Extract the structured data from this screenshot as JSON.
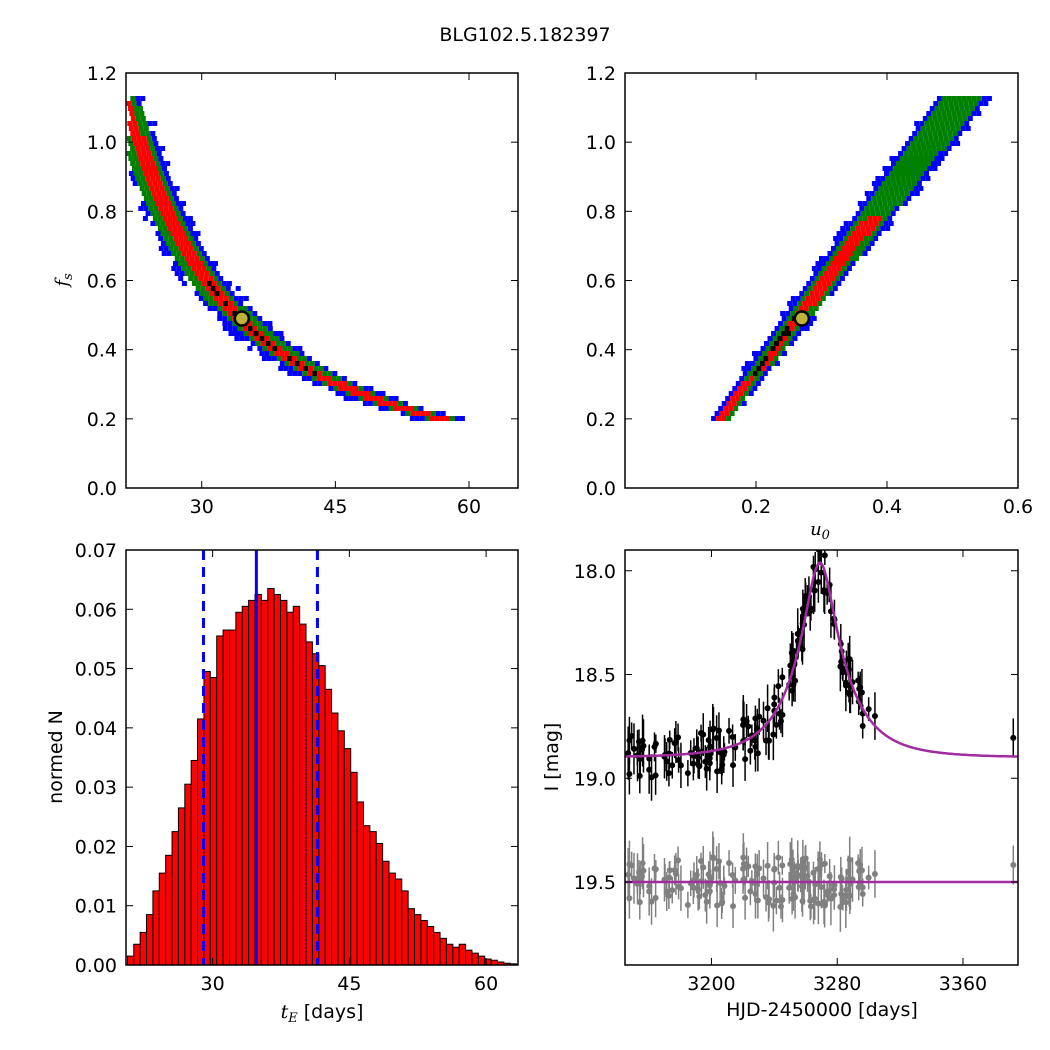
{
  "figure": {
    "title": "BLG102.5.182397"
  },
  "chart_data": [
    {
      "type": "heatmap",
      "xlabel": "",
      "ylabel": "f_s",
      "xlim": [
        21.5,
        65.5
      ],
      "ylim": [
        0.0,
        1.2
      ],
      "xticks": [
        30,
        45,
        60
      ],
      "yticks": [
        0.0,
        0.2,
        0.4,
        0.6,
        0.8,
        1.0,
        1.2
      ],
      "colors": {
        "outer": "#0000ff",
        "mid": "#008000",
        "inner": "#ff0000",
        "core": "#000000",
        "best_fill": "#bdb23a",
        "best_edge": "#000000"
      },
      "best_fit": {
        "x": 34.5,
        "y": 0.49
      }
    },
    {
      "type": "heatmap",
      "xlabel": "u_0",
      "ylabel": "",
      "xlim": [
        0.0,
        0.6
      ],
      "ylim": [
        0.0,
        1.2
      ],
      "xticks": [
        0.2,
        0.4,
        0.6
      ],
      "yticks": [
        0.0,
        0.2,
        0.4,
        0.6,
        0.8,
        1.0,
        1.2
      ],
      "colors": {
        "outer": "#0000ff",
        "mid": "#008000",
        "inner": "#ff0000",
        "core": "#000000",
        "best_fill": "#bdb23a",
        "best_edge": "#000000"
      },
      "best_fit": {
        "x": 0.27,
        "y": 0.49
      }
    },
    {
      "type": "bar",
      "xlabel": "t_E [days]",
      "ylabel": "normed N",
      "xlim": [
        20.5,
        63.5
      ],
      "ylim": [
        0.0,
        0.07
      ],
      "xticks": [
        30,
        45,
        60
      ],
      "yticks": [
        0.0,
        0.01,
        0.02,
        0.03,
        0.04,
        0.05,
        0.06,
        0.07
      ],
      "bar_color": "#ff0000",
      "x": [
        21.0,
        21.7,
        22.4,
        23.1,
        23.8,
        24.5,
        25.2,
        25.9,
        26.6,
        27.3,
        28.0,
        28.7,
        29.4,
        30.1,
        30.8,
        31.5,
        32.2,
        32.9,
        33.6,
        34.3,
        35.0,
        35.7,
        36.4,
        37.1,
        37.8,
        38.5,
        39.2,
        39.9,
        40.6,
        41.3,
        42.0,
        42.7,
        43.4,
        44.1,
        44.8,
        45.5,
        46.2,
        46.9,
        47.6,
        48.3,
        49.0,
        49.7,
        50.4,
        51.1,
        51.8,
        52.5,
        53.2,
        53.9,
        54.6,
        55.3,
        56.0,
        56.7,
        57.4,
        58.1,
        58.8,
        59.5,
        60.2,
        60.9,
        61.6,
        62.3,
        63.0
      ],
      "values": [
        0.0015,
        0.0035,
        0.0055,
        0.0085,
        0.0125,
        0.0155,
        0.0185,
        0.0225,
        0.0265,
        0.0305,
        0.0345,
        0.0415,
        0.0495,
        0.0485,
        0.0555,
        0.0565,
        0.0565,
        0.0595,
        0.0605,
        0.0615,
        0.0625,
        0.0615,
        0.0635,
        0.0625,
        0.0615,
        0.0595,
        0.0605,
        0.0575,
        0.0545,
        0.0525,
        0.0505,
        0.0465,
        0.0425,
        0.0395,
        0.0365,
        0.0325,
        0.0275,
        0.0235,
        0.0225,
        0.0205,
        0.0175,
        0.0155,
        0.0145,
        0.0125,
        0.0095,
        0.0085,
        0.0075,
        0.0065,
        0.0055,
        0.0045,
        0.0035,
        0.003,
        0.0035,
        0.0025,
        0.002,
        0.0015,
        0.001,
        0.0008,
        0.0005,
        0.0003,
        0.0002
      ],
      "vlines": {
        "median": 34.8,
        "lower": 29.0,
        "upper": 41.5,
        "color": "#0000ff"
      }
    },
    {
      "type": "scatter",
      "xlabel": "HJD-2450000 [days]",
      "ylabel": "I [mag]",
      "xlim": [
        3145,
        3395
      ],
      "ylim": [
        19.9,
        17.9
      ],
      "xticks": [
        3200,
        3280,
        3360
      ],
      "yticks": [
        18.0,
        18.5,
        19.0,
        19.5
      ],
      "model": {
        "baseline": 18.9,
        "peak_mag": 17.98,
        "t0": 3269,
        "tE": 34.5,
        "u0": 0.27,
        "fs": 0.49,
        "color": "#a02ca0"
      },
      "residual_offset": 19.5,
      "data_color": "#000000",
      "residual_color": "#808080"
    }
  ]
}
